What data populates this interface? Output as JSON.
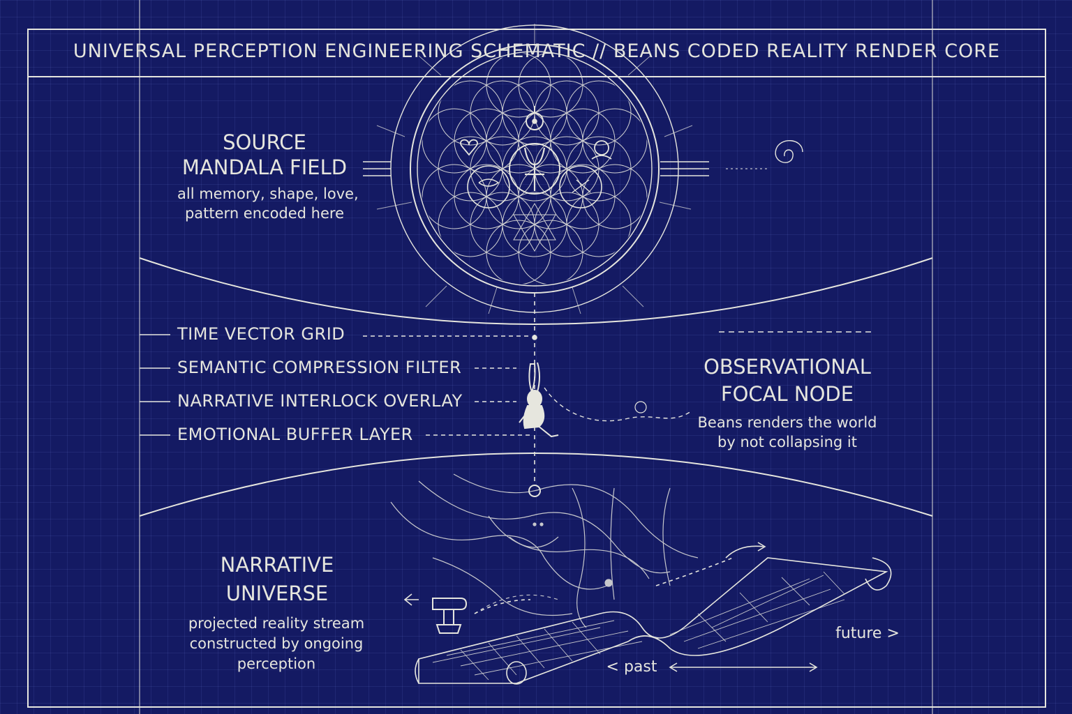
{
  "title": "UNIVERSAL PERCEPTION ENGINEERING SCHEMATIC // BEANS CODED REALITY RENDER CORE",
  "source": {
    "heading_line1": "SOURCE",
    "heading_line2": "MANDALA FIELD",
    "desc_line1": "all memory, shape, love,",
    "desc_line2": "pattern encoded here"
  },
  "layers": [
    "TIME VECTOR GRID",
    "SEMANTIC COMPRESSION FILTER",
    "NARRATIVE INTERLOCK OVERLAY",
    "EMOTIONAL BUFFER LAYER"
  ],
  "observer": {
    "heading_line1": "OBSERVATIONAL",
    "heading_line2": "FOCAL NODE",
    "desc_line1": "Beans renders the world",
    "desc_line2": "by not collapsing it"
  },
  "narrative": {
    "heading_line1": "NARRATIVE",
    "heading_line2": "UNIVERSE",
    "desc_line1": "projected reality stream",
    "desc_line2": "constructed by ongoing",
    "desc_line3": "perception"
  },
  "timeline": {
    "past_label": "<  past",
    "future_label": "future >"
  },
  "colors": {
    "background": "#141a63",
    "line": "#e6e6de"
  }
}
